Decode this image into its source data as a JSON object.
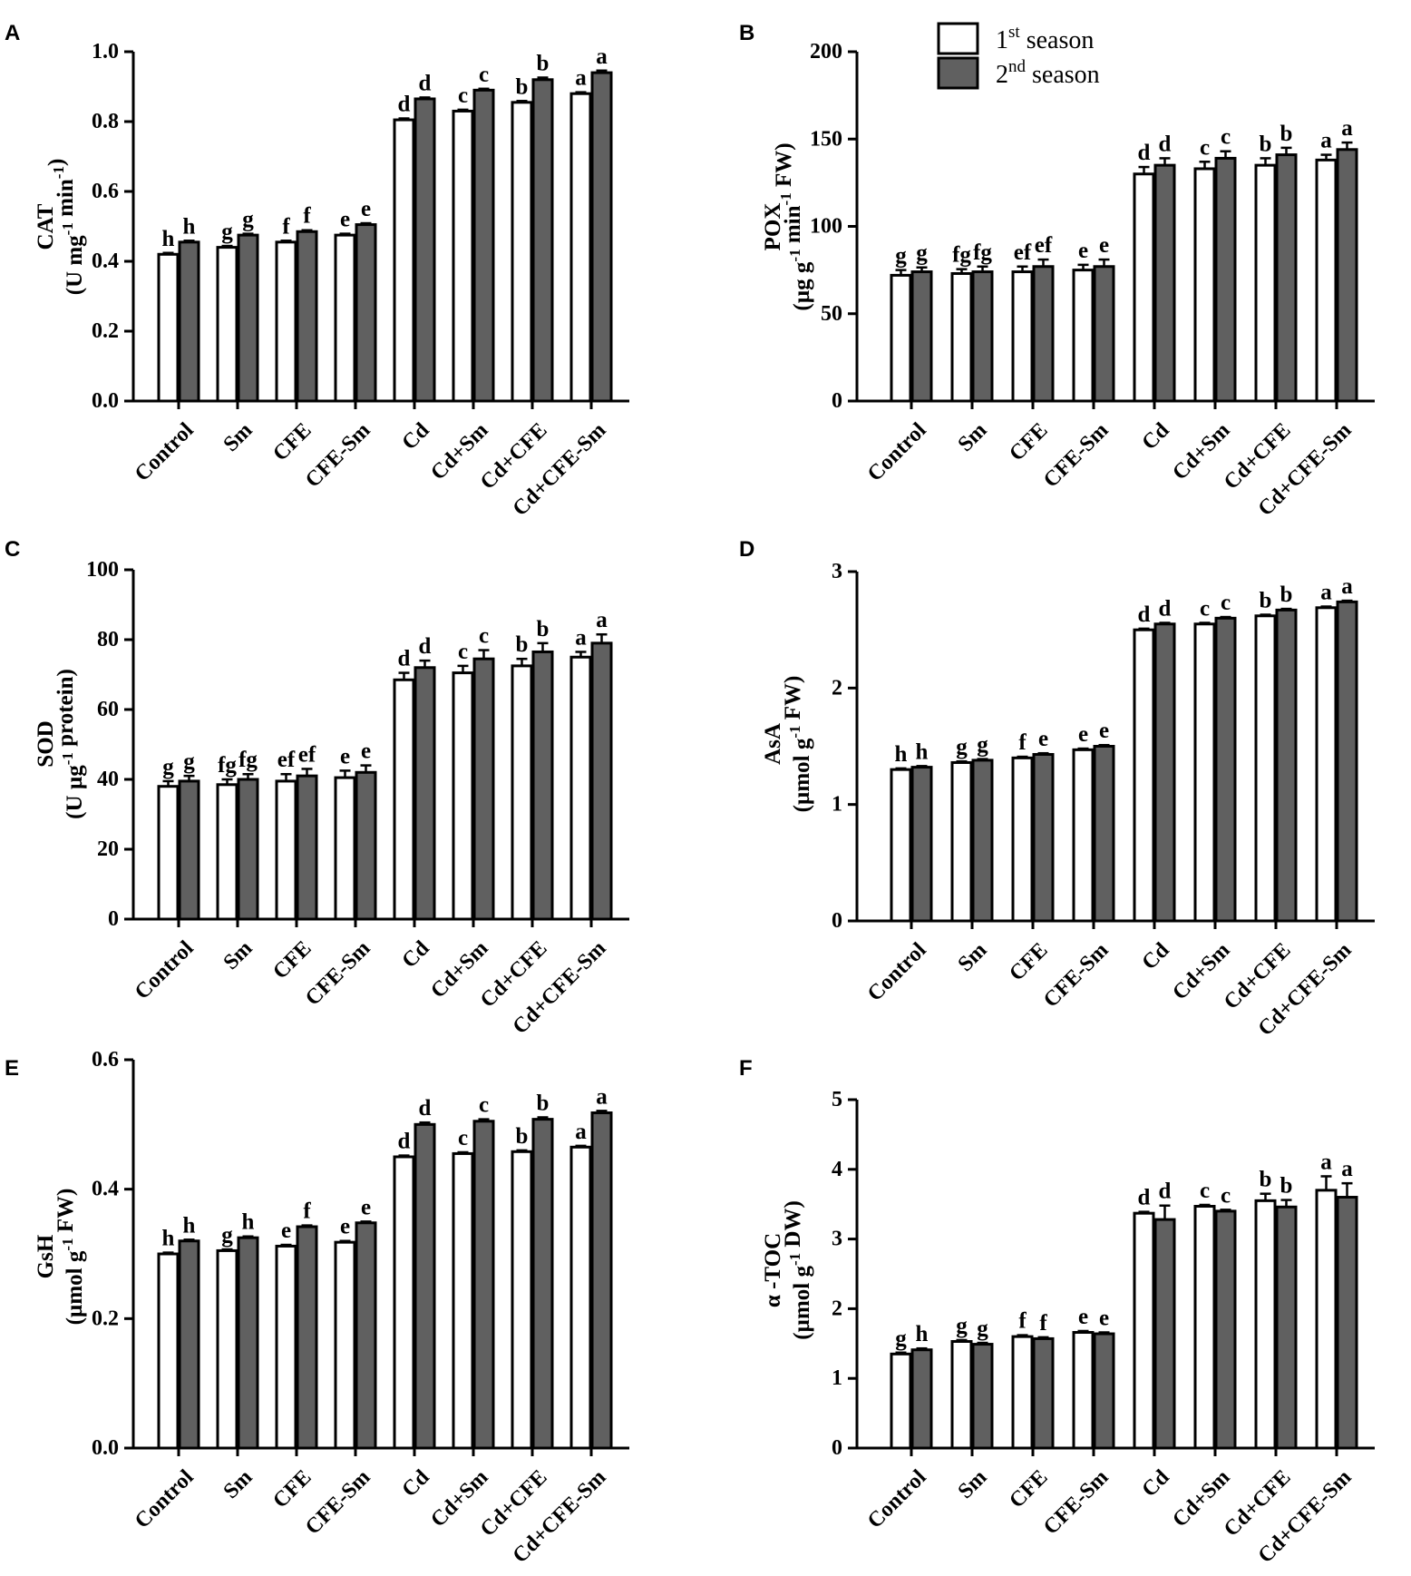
{
  "legend": {
    "entries": [
      {
        "name": "1st season",
        "base": "1",
        "sup": "st",
        "tail": " season",
        "color": "#ffffff"
      },
      {
        "name": "2nd season",
        "base": "2",
        "sup": "nd",
        "tail": " season",
        "color": "#606060"
      }
    ]
  },
  "chart_data": [
    {
      "panel": "A",
      "type": "bar",
      "ylabel_top": "CAT",
      "ylabel_bottom": [
        {
          "t": "(U mg"
        },
        {
          "t": "-1",
          "sup": true
        },
        {
          "t": " min"
        },
        {
          "t": "-1",
          "sup": true
        },
        {
          "t": ")"
        }
      ],
      "ylim": [
        0,
        1.0
      ],
      "yticks": [
        "0.0",
        "0.2",
        "0.4",
        "0.6",
        "0.8",
        "1.0"
      ],
      "categories": [
        "Control",
        "Sm",
        "CFE",
        "CFE-Sm",
        "Cd",
        "Cd+Sm",
        "Cd+CFE",
        "Cd+CFE-Sm"
      ],
      "series": [
        {
          "name": "1st season",
          "values": [
            0.42,
            0.44,
            0.455,
            0.475,
            0.805,
            0.83,
            0.855,
            0.88
          ],
          "errors": [
            0.004,
            0.004,
            0.004,
            0.004,
            0.004,
            0.004,
            0.004,
            0.004
          ],
          "letters": [
            "h",
            "g",
            "f",
            "e",
            "d",
            "c",
            "b",
            "a"
          ]
        },
        {
          "name": "2nd season",
          "values": [
            0.455,
            0.475,
            0.485,
            0.505,
            0.865,
            0.89,
            0.92,
            0.94
          ],
          "errors": [
            0.004,
            0.004,
            0.004,
            0.004,
            0.004,
            0.004,
            0.006,
            0.006
          ],
          "letters": [
            "h",
            "g",
            "f",
            "e",
            "d",
            "c",
            "b",
            "a"
          ]
        }
      ]
    },
    {
      "panel": "B",
      "type": "bar",
      "ylabel_top": "POX",
      "ylabel_bottom": [
        {
          "t": "(µg g"
        },
        {
          "t": "-1",
          "sup": true
        },
        {
          "t": " min"
        },
        {
          "t": "-1",
          "sup": true
        },
        {
          "t": " FW)"
        }
      ],
      "ylim": [
        0,
        200
      ],
      "yticks": [
        "0",
        "50",
        "100",
        "150",
        "200"
      ],
      "categories": [
        "Control",
        "Sm",
        "CFE",
        "CFE-Sm",
        "Cd",
        "Cd+Sm",
        "Cd+CFE",
        "Cd+CFE-Sm"
      ],
      "series": [
        {
          "name": "1st season",
          "values": [
            72,
            73,
            74,
            75,
            130,
            133,
            135,
            138
          ],
          "errors": [
            3,
            2.5,
            3,
            3,
            4,
            4,
            4,
            3
          ],
          "letters": [
            "g",
            "fg",
            "ef",
            "e",
            "d",
            "c",
            "b",
            "a"
          ]
        },
        {
          "name": "2nd season",
          "values": [
            74,
            74,
            77,
            77,
            135,
            139,
            141,
            144
          ],
          "errors": [
            2.5,
            3,
            4,
            4,
            4,
            4,
            4,
            4
          ],
          "letters": [
            "g",
            "fg",
            "ef",
            "e",
            "d",
            "c",
            "b",
            "a"
          ]
        }
      ]
    },
    {
      "panel": "C",
      "type": "bar",
      "ylabel_top": "SOD",
      "ylabel_bottom": [
        {
          "t": "(U µg"
        },
        {
          "t": "-1",
          "sup": true
        },
        {
          "t": " protein)"
        }
      ],
      "ylim": [
        0,
        100
      ],
      "yticks": [
        "0",
        "20",
        "40",
        "60",
        "80",
        "100"
      ],
      "categories": [
        "Control",
        "Sm",
        "CFE",
        "CFE-Sm",
        "Cd",
        "Cd+Sm",
        "Cd+CFE",
        "Cd+CFE-Sm"
      ],
      "series": [
        {
          "name": "1st season",
          "values": [
            38,
            38.5,
            39.5,
            40.5,
            68.5,
            70.5,
            72.5,
            75
          ],
          "errors": [
            1.5,
            1.5,
            2,
            2,
            2,
            2,
            2,
            1.5
          ],
          "letters": [
            "g",
            "fg",
            "ef",
            "e",
            "d",
            "c",
            "b",
            "a"
          ]
        },
        {
          "name": "2nd season",
          "values": [
            39.5,
            40,
            41,
            42,
            72,
            74.5,
            76.5,
            79
          ],
          "errors": [
            1.5,
            1.5,
            2,
            2,
            2,
            2.5,
            2.5,
            2.5
          ],
          "letters": [
            "g",
            "fg",
            "ef",
            "e",
            "d",
            "c",
            "b",
            "a"
          ]
        }
      ]
    },
    {
      "panel": "D",
      "type": "bar",
      "ylabel_top": "AsA",
      "ylabel_bottom": [
        {
          "t": "(µmol g"
        },
        {
          "t": "-1",
          "sup": true
        },
        {
          "t": " FW)"
        }
      ],
      "ylim": [
        0,
        3
      ],
      "yticks": [
        "0",
        "1",
        "2",
        "3"
      ],
      "categories": [
        "Control",
        "Sm",
        "CFE",
        "CFE-Sm",
        "Cd",
        "Cd+Sm",
        "Cd+CFE",
        "Cd+CFE-Sm"
      ],
      "series": [
        {
          "name": "1st season",
          "values": [
            1.3,
            1.36,
            1.4,
            1.47,
            2.5,
            2.55,
            2.62,
            2.69
          ],
          "errors": [
            0.01,
            0.01,
            0.01,
            0.01,
            0.01,
            0.01,
            0.01,
            0.01
          ],
          "letters": [
            "h",
            "g",
            "f",
            "e",
            "d",
            "c",
            "b",
            "a"
          ]
        },
        {
          "name": "2nd season",
          "values": [
            1.32,
            1.38,
            1.43,
            1.5,
            2.55,
            2.6,
            2.67,
            2.74
          ],
          "errors": [
            0.01,
            0.01,
            0.01,
            0.01,
            0.01,
            0.01,
            0.01,
            0.01
          ],
          "letters": [
            "h",
            "g",
            "e",
            "e",
            "d",
            "c",
            "b",
            "a"
          ]
        }
      ]
    },
    {
      "panel": "E",
      "type": "bar",
      "ylabel_top": "GsH",
      "ylabel_bottom": [
        {
          "t": "(µmol g"
        },
        {
          "t": "-1",
          "sup": true
        },
        {
          "t": " FW)"
        }
      ],
      "ylim": [
        0,
        0.6
      ],
      "yticks": [
        "0.0",
        "0.2",
        "0.4",
        "0.6"
      ],
      "categories": [
        "Control",
        "Sm",
        "CFE",
        "CFE-Sm",
        "Cd",
        "Cd+Sm",
        "Cd+CFE",
        "Cd+CFE-Sm"
      ],
      "series": [
        {
          "name": "1st season",
          "values": [
            0.3,
            0.305,
            0.312,
            0.318,
            0.45,
            0.455,
            0.458,
            0.465
          ],
          "errors": [
            0.002,
            0.002,
            0.002,
            0.002,
            0.002,
            0.002,
            0.002,
            0.002
          ],
          "letters": [
            "h",
            "g",
            "e",
            "e",
            "d",
            "c",
            "b",
            "a"
          ]
        },
        {
          "name": "2nd season",
          "values": [
            0.32,
            0.325,
            0.342,
            0.348,
            0.5,
            0.505,
            0.508,
            0.518
          ],
          "errors": [
            0.002,
            0.002,
            0.002,
            0.002,
            0.003,
            0.003,
            0.003,
            0.003
          ],
          "letters": [
            "h",
            "h",
            "f",
            "e",
            "d",
            "c",
            "b",
            "a"
          ]
        }
      ]
    },
    {
      "panel": "F",
      "type": "bar",
      "ylabel_top": "α -TOC",
      "ylabel_bottom": [
        {
          "t": "(µmol g"
        },
        {
          "t": "-1",
          "sup": true
        },
        {
          "t": " DW)"
        }
      ],
      "ylim": [
        0,
        5
      ],
      "yticks": [
        "0",
        "1",
        "2",
        "3",
        "4",
        "5"
      ],
      "categories": [
        "Control",
        "Sm",
        "CFE",
        "CFE-Sm",
        "Cd",
        "Cd+Sm",
        "Cd+CFE",
        "Cd+CFE-Sm"
      ],
      "series": [
        {
          "name": "1st season",
          "values": [
            1.35,
            1.53,
            1.6,
            1.66,
            3.37,
            3.47,
            3.55,
            3.7
          ],
          "errors": [
            0.02,
            0.02,
            0.02,
            0.02,
            0.02,
            0.02,
            0.1,
            0.2
          ],
          "letters": [
            "g",
            "g",
            "f",
            "e",
            "d",
            "c",
            "b",
            "a"
          ]
        },
        {
          "name": "2nd season",
          "values": [
            1.41,
            1.49,
            1.57,
            1.64,
            3.28,
            3.4,
            3.46,
            3.6
          ],
          "errors": [
            0.02,
            0.02,
            0.02,
            0.02,
            0.2,
            0.02,
            0.1,
            0.2
          ],
          "letters": [
            "h",
            "g",
            "f",
            "e",
            "d",
            "c",
            "b",
            "a"
          ]
        }
      ]
    }
  ]
}
